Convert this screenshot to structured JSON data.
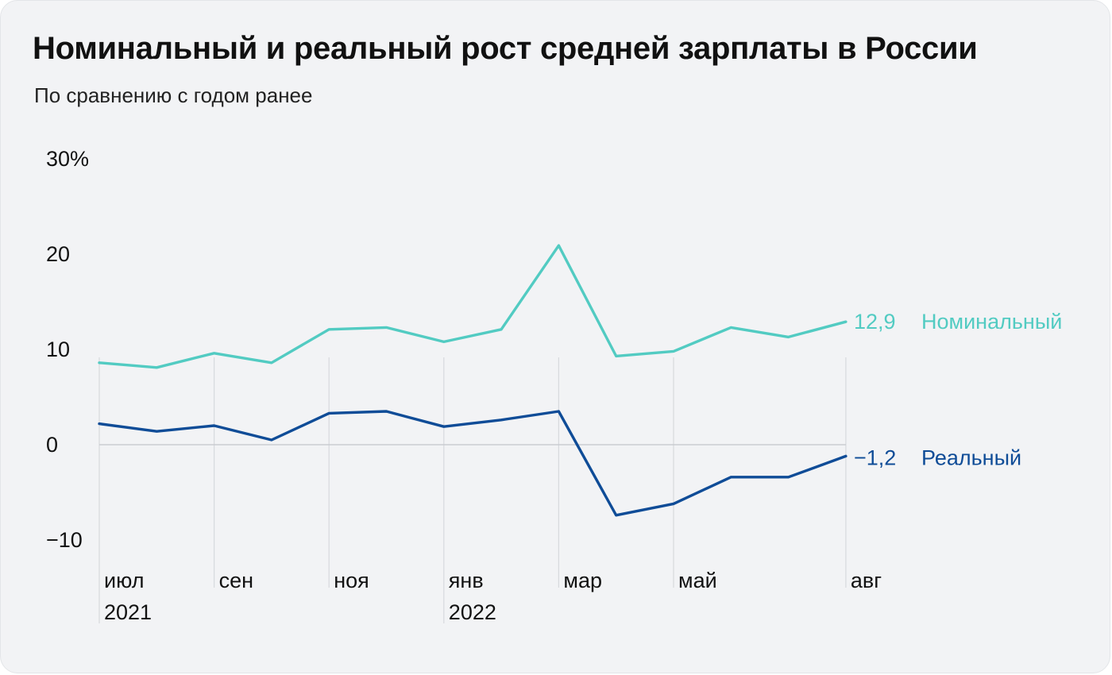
{
  "chart_data": {
    "type": "line",
    "title": "Номинальный и реальный рост средней зарплаты в России",
    "subtitle": "По сравнению с годом ранее",
    "x": [
      "2021-07",
      "2021-08",
      "2021-09",
      "2021-10",
      "2021-11",
      "2021-12",
      "2022-01",
      "2022-02",
      "2022-03",
      "2022-04",
      "2022-05",
      "2022-06",
      "2022-07",
      "2022-08"
    ],
    "x_tick_labels": [
      {
        "index": 0,
        "month": "июл",
        "year": "2021"
      },
      {
        "index": 2,
        "month": "сен",
        "year": ""
      },
      {
        "index": 4,
        "month": "ноя",
        "year": ""
      },
      {
        "index": 6,
        "month": "янв",
        "year": "2022"
      },
      {
        "index": 8,
        "month": "мар",
        "year": ""
      },
      {
        "index": 10,
        "month": "май",
        "year": ""
      },
      {
        "index": 13,
        "month": "авг",
        "year": ""
      }
    ],
    "y_ticks": [
      {
        "value": 30,
        "label": "30%"
      },
      {
        "value": 20,
        "label": "20"
      },
      {
        "value": 10,
        "label": "10"
      },
      {
        "value": 0,
        "label": "0"
      },
      {
        "value": -10,
        "label": "−10"
      }
    ],
    "ylim": [
      -12.5,
      31
    ],
    "series": [
      {
        "name": "Номинальный",
        "color": "#52cbc2",
        "values": [
          8.6,
          8.1,
          9.6,
          8.6,
          12.1,
          12.3,
          10.8,
          12.1,
          20.9,
          9.3,
          9.8,
          12.3,
          11.3,
          12.9
        ],
        "end_value_label": "12,9",
        "end_name_label": "Номинальный"
      },
      {
        "name": "Реальный",
        "color": "#0f4c97",
        "values": [
          2.2,
          1.4,
          2.0,
          0.5,
          3.3,
          3.5,
          1.9,
          2.6,
          3.5,
          -7.4,
          -6.2,
          -3.4,
          -3.4,
          -1.2
        ],
        "end_value_label": "−1,2",
        "end_name_label": "Реальный"
      }
    ],
    "grid": {
      "vertical_at_ticks": true,
      "zero_line": true
    }
  }
}
